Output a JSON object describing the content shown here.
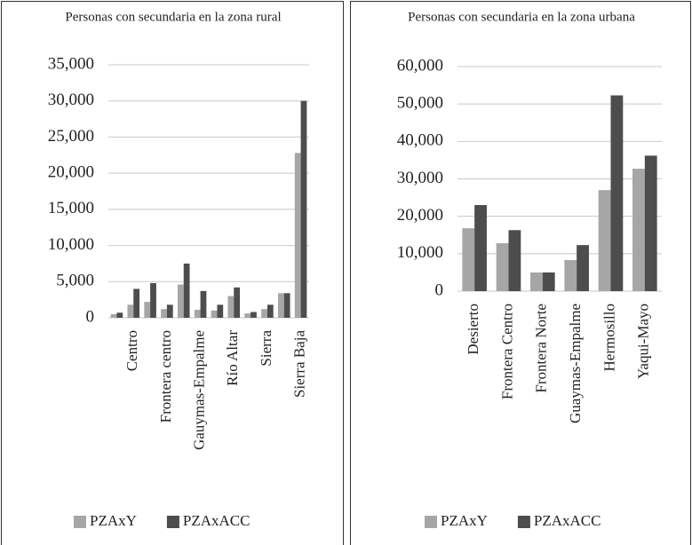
{
  "chart_data": [
    {
      "type": "bar",
      "title": "Personas con secundaria en la zona rural",
      "categories": [
        null,
        "Centro",
        null,
        "Frontera centro",
        null,
        "Gauymas-Empalme",
        null,
        "Río Altar",
        null,
        "Sierra",
        null,
        "Sierra Baja"
      ],
      "series": [
        {
          "name": "PZAxY",
          "color": "#a6a6a6",
          "values": [
            500,
            1800,
            2200,
            1200,
            4600,
            1100,
            1000,
            3000,
            600,
            1200,
            3400,
            22800
          ]
        },
        {
          "name": "PZAxACC",
          "color": "#4d4d4d",
          "values": [
            700,
            4000,
            4800,
            1800,
            7500,
            3700,
            1800,
            4200,
            800,
            1800,
            3400,
            30000
          ]
        }
      ],
      "ylim": [
        0,
        35000
      ],
      "yticks": [
        0,
        {
          "value": 5000,
          "label": "5,000"
        },
        {
          "value": 10000,
          "label": "10,000"
        },
        {
          "value": 15000,
          "label": "15,000"
        },
        {
          "value": 20000,
          "label": "20,000"
        },
        {
          "value": 25000,
          "label": "25,000"
        },
        {
          "value": 30000,
          "label": "30,000"
        },
        {
          "value": 35000,
          "label": "35,000"
        }
      ],
      "grid": true,
      "legend": "bottom"
    },
    {
      "type": "bar",
      "title": "Personas con secundaria en la zona urbana",
      "categories": [
        "Desierto",
        "Frontera Centro",
        "Frontera Norte",
        "Guaymas-Empalme",
        "Hermosillo",
        "Yaqui-Mayo"
      ],
      "series": [
        {
          "name": "PZAxY",
          "color": "#a6a6a6",
          "values": [
            16800,
            12800,
            5000,
            8300,
            27000,
            32700
          ]
        },
        {
          "name": "PZAxACC",
          "color": "#4d4d4d",
          "values": [
            23000,
            16300,
            5000,
            12300,
            52300,
            36200
          ]
        }
      ],
      "ylim": [
        0,
        60000
      ],
      "yticks": [
        0,
        {
          "value": 10000,
          "label": "10,000"
        },
        {
          "value": 20000,
          "label": "20,000"
        },
        {
          "value": 30000,
          "label": "30,000"
        },
        {
          "value": 40000,
          "label": "40,000"
        },
        {
          "value": 50000,
          "label": "50,000"
        },
        {
          "value": 60000,
          "label": "60,000"
        }
      ],
      "grid": true,
      "legend": "bottom"
    }
  ]
}
